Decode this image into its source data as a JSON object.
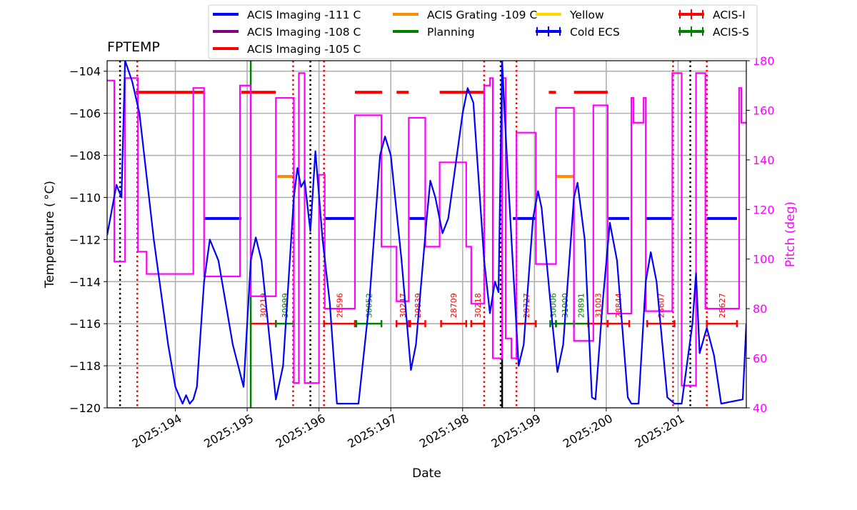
{
  "chart_data": {
    "type": "line",
    "title": "FPTEMP",
    "xlabel": "Date",
    "ylabel": "Temperature ($^\\circ$C)",
    "ylabel_display": "Temperature ( °C)",
    "y2label": "Pitch (deg)",
    "xlim": [
      193.05,
      201.95
    ],
    "ylim": [
      -120,
      -103.5
    ],
    "y2lim": [
      40,
      180
    ],
    "xticks": [
      194,
      195,
      196,
      197,
      198,
      199,
      200,
      201
    ],
    "xtick_labels": [
      "2025:194",
      "2025:195",
      "2025:196",
      "2025:197",
      "2025:198",
      "2025:199",
      "2025:200",
      "2025:201"
    ],
    "yticks": [
      -120,
      -118,
      -116,
      -114,
      -112,
      -110,
      -108,
      -106,
      -104
    ],
    "y2ticks": [
      40,
      60,
      80,
      100,
      120,
      140,
      160,
      180
    ],
    "grid": true,
    "legend_placement": "top-center",
    "legend": [
      {
        "label": "ACIS Imaging -111 C",
        "color": "#0000ff",
        "kind": "line"
      },
      {
        "label": "ACIS Imaging -108 C",
        "color": "#800080",
        "kind": "line"
      },
      {
        "label": "ACIS Imaging -105 C",
        "color": "#ff0000",
        "kind": "line"
      },
      {
        "label": "ACIS Grating -109 C",
        "color": "#ff8c00",
        "kind": "line"
      },
      {
        "label": "Planning",
        "color": "#008000",
        "kind": "line"
      },
      {
        "label": "Yellow",
        "color": "#ffd700",
        "kind": "line"
      },
      {
        "label": "Cold ECS",
        "color": "#0000ff",
        "kind": "err"
      },
      {
        "label": "ACIS-I",
        "color": "#ff0000",
        "kind": "err"
      },
      {
        "label": "ACIS-S",
        "color": "#008000",
        "kind": "err"
      }
    ],
    "temperature": [
      [
        193.05,
        -111.8
      ],
      [
        193.18,
        -109.4
      ],
      [
        193.25,
        -110
      ],
      [
        193.3,
        -103.5
      ],
      [
        193.4,
        -104.5
      ],
      [
        193.5,
        -106
      ],
      [
        193.7,
        -112
      ],
      [
        193.9,
        -117
      ],
      [
        194.0,
        -119
      ],
      [
        194.1,
        -119.8
      ],
      [
        194.15,
        -119.4
      ],
      [
        194.2,
        -119.8
      ],
      [
        194.25,
        -119.6
      ],
      [
        194.3,
        -119
      ],
      [
        194.4,
        -114
      ],
      [
        194.48,
        -112
      ],
      [
        194.6,
        -113
      ],
      [
        194.8,
        -117
      ],
      [
        194.95,
        -119
      ],
      [
        195.05,
        -113
      ],
      [
        195.12,
        -111.9
      ],
      [
        195.2,
        -113
      ],
      [
        195.35,
        -118
      ],
      [
        195.4,
        -119.6
      ],
      [
        195.5,
        -118
      ],
      [
        195.65,
        -110
      ],
      [
        195.7,
        -108.6
      ],
      [
        195.75,
        -109.5
      ],
      [
        195.8,
        -109.2
      ],
      [
        195.88,
        -111.6
      ],
      [
        195.95,
        -107.8
      ],
      [
        196.05,
        -112
      ],
      [
        196.15,
        -115
      ],
      [
        196.25,
        -119.8
      ],
      [
        196.55,
        -119.8
      ],
      [
        196.7,
        -115
      ],
      [
        196.85,
        -108
      ],
      [
        196.92,
        -107.1
      ],
      [
        197.0,
        -108
      ],
      [
        197.15,
        -113
      ],
      [
        197.28,
        -118.2
      ],
      [
        197.35,
        -117
      ],
      [
        197.5,
        -111
      ],
      [
        197.55,
        -109.2
      ],
      [
        197.62,
        -110
      ],
      [
        197.72,
        -111.7
      ],
      [
        197.8,
        -111
      ],
      [
        198.0,
        -106
      ],
      [
        198.07,
        -104.8
      ],
      [
        198.15,
        -105.5
      ],
      [
        198.3,
        -113
      ],
      [
        198.38,
        -115.5
      ],
      [
        198.45,
        -114
      ],
      [
        198.5,
        -114.5
      ],
      [
        198.55,
        -103.5
      ],
      [
        198.6,
        -107
      ],
      [
        198.68,
        -112
      ],
      [
        198.78,
        -118
      ],
      [
        198.85,
        -117
      ],
      [
        198.98,
        -111
      ],
      [
        199.05,
        -109.7
      ],
      [
        199.1,
        -110.5
      ],
      [
        199.25,
        -116
      ],
      [
        199.32,
        -118.3
      ],
      [
        199.4,
        -117
      ],
      [
        199.55,
        -110
      ],
      [
        199.6,
        -109.3
      ],
      [
        199.7,
        -112
      ],
      [
        199.8,
        -119.5
      ],
      [
        199.85,
        -119.6
      ],
      [
        199.95,
        -115
      ],
      [
        200.05,
        -111.2
      ],
      [
        200.15,
        -113
      ],
      [
        200.3,
        -119.5
      ],
      [
        200.35,
        -119.8
      ],
      [
        200.45,
        -119.8
      ],
      [
        200.55,
        -114
      ],
      [
        200.62,
        -112.6
      ],
      [
        200.7,
        -114
      ],
      [
        200.85,
        -119.5
      ],
      [
        200.95,
        -119.8
      ],
      [
        201.05,
        -119.8
      ],
      [
        201.2,
        -116
      ],
      [
        201.25,
        -113.6
      ],
      [
        201.3,
        -117.4
      ],
      [
        201.4,
        -116.2
      ],
      [
        201.5,
        -117.5
      ],
      [
        201.6,
        -119.8
      ],
      [
        201.9,
        -119.6
      ],
      [
        201.95,
        -116
      ]
    ],
    "pitch_steps": [
      [
        193.05,
        172
      ],
      [
        193.15,
        99
      ],
      [
        193.3,
        173
      ],
      [
        193.48,
        103
      ],
      [
        193.6,
        94
      ],
      [
        194.25,
        169
      ],
      [
        194.4,
        93
      ],
      [
        194.9,
        170
      ],
      [
        195.05,
        85
      ],
      [
        195.4,
        165
      ],
      [
        195.65,
        50
      ],
      [
        195.72,
        175
      ],
      [
        195.8,
        50
      ],
      [
        196.0,
        134
      ],
      [
        196.08,
        80
      ],
      [
        196.5,
        158
      ],
      [
        196.87,
        105
      ],
      [
        197.08,
        83
      ],
      [
        197.25,
        157
      ],
      [
        197.48,
        105
      ],
      [
        197.68,
        139
      ],
      [
        198.05,
        105
      ],
      [
        198.12,
        82
      ],
      [
        198.3,
        170
      ],
      [
        198.38,
        173
      ],
      [
        198.42,
        60
      ],
      [
        198.55,
        173
      ],
      [
        198.6,
        68
      ],
      [
        198.68,
        60
      ],
      [
        198.75,
        151
      ],
      [
        199.02,
        98
      ],
      [
        199.3,
        161
      ],
      [
        199.55,
        67
      ],
      [
        199.82,
        162
      ],
      [
        200.02,
        78
      ],
      [
        200.35,
        165
      ],
      [
        200.38,
        155
      ],
      [
        200.52,
        165
      ],
      [
        200.55,
        79
      ],
      [
        200.92,
        175
      ],
      [
        201.05,
        49
      ],
      [
        201.25,
        175
      ],
      [
        201.38,
        80
      ],
      [
        201.85,
        169
      ],
      [
        201.88,
        155
      ],
      [
        201.95,
        155
      ]
    ],
    "limit_segments": [
      {
        "value": -105,
        "color": "#ff0000",
        "ranges": [
          [
            193.45,
            194.4
          ],
          [
            194.92,
            195.4
          ],
          [
            196.5,
            196.88
          ],
          [
            197.08,
            197.25
          ],
          [
            197.68,
            198.3
          ],
          [
            199.2,
            199.3
          ],
          [
            199.55,
            200.02
          ]
        ]
      },
      {
        "value": -111,
        "color": "#0000ff",
        "ranges": [
          [
            194.4,
            194.92
          ],
          [
            196.08,
            196.5
          ],
          [
            197.25,
            197.48
          ],
          [
            198.7,
            199.02
          ],
          [
            200.02,
            200.32
          ],
          [
            200.55,
            200.92
          ],
          [
            201.4,
            201.82
          ]
        ]
      },
      {
        "value": -109,
        "color": "#ff8c00",
        "ranges": [
          [
            195.42,
            195.65
          ],
          [
            199.3,
            199.55
          ]
        ]
      }
    ],
    "vlines": [
      {
        "x": 193.23,
        "color": "#000000",
        "style": "dotted"
      },
      {
        "x": 195.88,
        "color": "#000000",
        "style": "dotted"
      },
      {
        "x": 198.53,
        "color": "#000000",
        "style": "dotted"
      },
      {
        "x": 201.17,
        "color": "#000000",
        "style": "dotted"
      },
      {
        "x": 193.47,
        "color": "#ff0000",
        "style": "dotted"
      },
      {
        "x": 195.64,
        "color": "#ff0000",
        "style": "dotted"
      },
      {
        "x": 196.07,
        "color": "#ff0000",
        "style": "dotted"
      },
      {
        "x": 198.3,
        "color": "#ff0000",
        "style": "dotted"
      },
      {
        "x": 198.75,
        "color": "#ff0000",
        "style": "dotted"
      },
      {
        "x": 200.93,
        "color": "#ff0000",
        "style": "dotted"
      },
      {
        "x": 201.4,
        "color": "#ff0000",
        "style": "dotted"
      },
      {
        "x": 195.05,
        "color": "#008000",
        "style": "solid"
      },
      {
        "x": 198.55,
        "color": "#000000",
        "style": "solid"
      }
    ],
    "obsids": [
      {
        "id": "30219",
        "start": 195.05,
        "end": 195.4,
        "color": "#ff0000"
      },
      {
        "id": "30999",
        "start": 195.4,
        "end": 195.65,
        "color": "#008000"
      },
      {
        "id": "28596",
        "start": 196.07,
        "end": 196.5,
        "color": "#ff0000"
      },
      {
        "id": "30052",
        "start": 196.52,
        "end": 196.87,
        "color": "#008000"
      },
      {
        "id": "30247",
        "start": 197.08,
        "end": 197.25,
        "color": "#ff0000"
      },
      {
        "id": "29839",
        "start": 197.27,
        "end": 197.48,
        "color": "#ff0000"
      },
      {
        "id": "28709",
        "start": 197.7,
        "end": 198.05,
        "color": "#ff0000"
      },
      {
        "id": "30218",
        "start": 198.12,
        "end": 198.3,
        "color": "#ff0000"
      },
      {
        "id": "28727",
        "start": 198.75,
        "end": 199.02,
        "color": "#ff0000"
      },
      {
        "id": "30006",
        "start": 199.22,
        "end": 199.3,
        "color": "#008000"
      },
      {
        "id": "31000",
        "start": 199.3,
        "end": 199.55,
        "color": "#008000"
      },
      {
        "id": "29891",
        "start": 199.55,
        "end": 199.75,
        "color": "#008000"
      },
      {
        "id": "31003",
        "start": 199.75,
        "end": 200.02,
        "color": "#ff0000"
      },
      {
        "id": "28844",
        "start": 200.02,
        "end": 200.32,
        "color": "#ff0000"
      },
      {
        "id": "28607",
        "start": 200.57,
        "end": 200.95,
        "color": "#ff0000"
      },
      {
        "id": "28627",
        "start": 201.4,
        "end": 201.82,
        "color": "#ff0000"
      }
    ],
    "obsid_level": -116
  }
}
